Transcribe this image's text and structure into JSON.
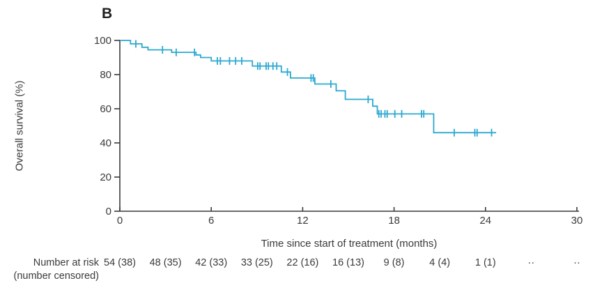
{
  "figure": {
    "panel_label": "B"
  },
  "chart_data": {
    "type": "line",
    "subtype": "kaplan-meier-step",
    "title": "",
    "xlabel": "Time since start of treatment (months)",
    "ylabel": "Overall survival (%)",
    "xlim": [
      0,
      30
    ],
    "ylim": [
      0,
      100
    ],
    "xticks": [
      0,
      6,
      12,
      18,
      24,
      30
    ],
    "yticks": [
      0,
      20,
      40,
      60,
      80,
      100
    ],
    "grid": false,
    "legend": "none",
    "axis_color": "#3a3a3a",
    "text_color": "#3a3a3a",
    "series": [
      {
        "name": "Overall survival",
        "color": "#2ba8d0",
        "steps": [
          [
            0,
            100
          ],
          [
            0.7,
            98
          ],
          [
            1.45,
            96
          ],
          [
            1.85,
            94.5
          ],
          [
            3.4,
            93
          ],
          [
            5.0,
            91.5
          ],
          [
            5.3,
            90
          ],
          [
            6.0,
            88
          ],
          [
            8.7,
            85
          ],
          [
            10.6,
            81.5
          ],
          [
            11.2,
            78
          ],
          [
            12.8,
            74.5
          ],
          [
            14.2,
            70.5
          ],
          [
            14.8,
            65.5
          ],
          [
            16.6,
            61.5
          ],
          [
            16.9,
            57
          ],
          [
            20.6,
            46
          ]
        ],
        "end_time": 24.7,
        "censors": [
          [
            1.05,
            98
          ],
          [
            2.8,
            94.5
          ],
          [
            3.7,
            93
          ],
          [
            4.9,
            93
          ],
          [
            6.4,
            88
          ],
          [
            6.6,
            88
          ],
          [
            7.2,
            88
          ],
          [
            7.6,
            88
          ],
          [
            8.0,
            88
          ],
          [
            9.05,
            85
          ],
          [
            9.2,
            85
          ],
          [
            9.6,
            85
          ],
          [
            9.75,
            85
          ],
          [
            10.05,
            85
          ],
          [
            10.3,
            85
          ],
          [
            11.0,
            81.5
          ],
          [
            12.55,
            78
          ],
          [
            12.7,
            78
          ],
          [
            13.85,
            74.5
          ],
          [
            16.3,
            65.5
          ],
          [
            17.0,
            57
          ],
          [
            17.15,
            57
          ],
          [
            17.4,
            57
          ],
          [
            17.55,
            57
          ],
          [
            18.05,
            57
          ],
          [
            18.5,
            57
          ],
          [
            19.8,
            57
          ],
          [
            19.95,
            57
          ],
          [
            21.95,
            46
          ],
          [
            23.3,
            46
          ],
          [
            23.45,
            46
          ],
          [
            24.4,
            46
          ]
        ]
      }
    ]
  },
  "risk_table": {
    "label_line1": "Number at risk",
    "label_line2": "(number censored)",
    "times": [
      0,
      3,
      6,
      9,
      12,
      15,
      18,
      21,
      24,
      27,
      30
    ],
    "values": [
      "54 (38)",
      "48 (35)",
      "42 (33)",
      "33 (25)",
      "22 (16)",
      "16 (13)",
      "9 (8)",
      "4 (4)",
      "1 (1)",
      "··",
      "··"
    ]
  }
}
